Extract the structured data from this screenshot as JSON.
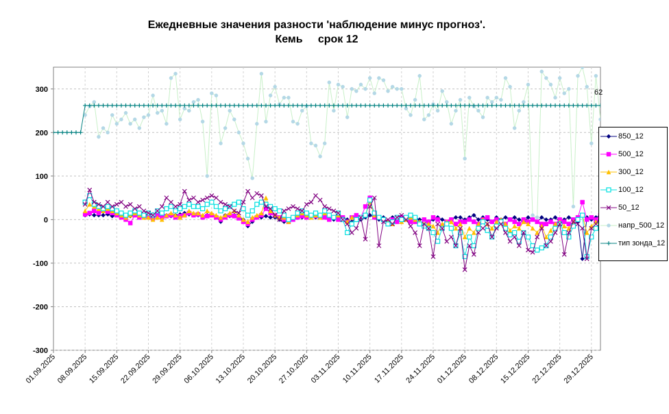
{
  "chart_data": {
    "type": "line",
    "title": "Ежедневные значения разности 'наблюдение минус прогноз'.",
    "subtitle": "Кемь     срок 12",
    "annotation": "62",
    "ylim": [
      -300,
      350
    ],
    "yticks": [
      -300,
      -200,
      -100,
      0,
      100,
      200,
      300
    ],
    "grid": true,
    "categories": [
      "01.09.2025",
      null,
      null,
      null,
      null,
      null,
      null,
      "08.09.2025",
      null,
      null,
      null,
      null,
      null,
      null,
      "15.09.2025",
      null,
      null,
      null,
      null,
      null,
      null,
      "22.09.2025",
      null,
      null,
      null,
      null,
      null,
      null,
      "29.09.2025",
      null,
      null,
      null,
      null,
      null,
      null,
      "06.10.2025",
      null,
      null,
      null,
      null,
      null,
      null,
      "13.10.2025",
      null,
      null,
      null,
      null,
      null,
      null,
      "20.10.2025",
      null,
      null,
      null,
      null,
      null,
      null,
      "27.10.2025",
      null,
      null,
      null,
      null,
      null,
      null,
      "03.11.2025",
      null,
      null,
      null,
      null,
      null,
      null,
      "10.11.2025",
      null,
      null,
      null,
      null,
      null,
      null,
      "17.11.2025",
      null,
      null,
      null,
      null,
      null,
      null,
      "24.11.2025",
      null,
      null,
      null,
      null,
      null,
      null,
      "01.12.2025",
      null,
      null,
      null,
      null,
      null,
      null,
      "08.12.2025",
      null,
      null,
      null,
      null,
      null,
      null,
      "15.12.2025",
      null,
      null,
      null,
      null,
      null,
      null,
      "22.12.2025",
      null,
      null,
      null,
      null,
      null,
      null,
      "29.12.2025",
      null,
      null
    ],
    "series": [
      {
        "name": "850_12",
        "color": "#000080",
        "marker": "diamond",
        "values": [
          null,
          null,
          null,
          null,
          null,
          null,
          null,
          10,
          12,
          10,
          10,
          10,
          12,
          8,
          10,
          8,
          5,
          8,
          10,
          8,
          5,
          8,
          12,
          10,
          10,
          10,
          8,
          10,
          12,
          15,
          12,
          10,
          10,
          8,
          10,
          12,
          5,
          -5,
          10,
          8,
          10,
          5,
          0,
          -15,
          -5,
          5,
          5,
          8,
          5,
          5,
          0,
          -5,
          0,
          5,
          8,
          5,
          10,
          8,
          5,
          5,
          5,
          5,
          0,
          5,
          5,
          0,
          -5,
          5,
          0,
          5,
          10,
          5,
          0,
          5,
          -5,
          5,
          0,
          5,
          5,
          10,
          5,
          0,
          0,
          -5,
          0,
          5,
          0,
          -5,
          0,
          5,
          5,
          0,
          5,
          10,
          0,
          5,
          0,
          -5,
          5,
          0,
          5,
          0,
          5,
          0,
          -5,
          5,
          0,
          -5,
          5,
          0,
          0,
          5,
          -5,
          0,
          5,
          0,
          -5,
          -90,
          5,
          0,
          5,
          10
        ]
      },
      {
        "name": "500_12",
        "color": "#ff00ff",
        "marker": "square",
        "values": [
          null,
          null,
          null,
          null,
          null,
          null,
          null,
          12,
          15,
          20,
          15,
          20,
          18,
          15,
          10,
          5,
          0,
          -8,
          10,
          5,
          8,
          5,
          3,
          10,
          5,
          8,
          10,
          5,
          8,
          10,
          15,
          10,
          12,
          5,
          8,
          10,
          5,
          0,
          5,
          10,
          8,
          3,
          -5,
          -10,
          0,
          5,
          10,
          25,
          15,
          10,
          5,
          0,
          -5,
          0,
          5,
          8,
          5,
          10,
          8,
          5,
          5,
          0,
          5,
          0,
          5,
          -5,
          5,
          10,
          5,
          30,
          50,
          5,
          5,
          0,
          -5,
          0,
          -5,
          5,
          0,
          -5,
          -5,
          -10,
          0,
          -5,
          5,
          0,
          -15,
          -5,
          0,
          -10,
          -5,
          -5,
          0,
          -5,
          -10,
          0,
          5,
          -5,
          0,
          -5,
          -10,
          0,
          -5,
          -10,
          0,
          -5,
          0,
          -5,
          -10,
          -10,
          -5,
          -10,
          0,
          -5,
          -10,
          0,
          5,
          40,
          0,
          5,
          0,
          10
        ]
      },
      {
        "name": "300_12",
        "color": "#ffc000",
        "marker": "triangle",
        "values": [
          null,
          null,
          null,
          null,
          null,
          null,
          null,
          20,
          35,
          30,
          25,
          20,
          25,
          20,
          15,
          10,
          5,
          10,
          15,
          10,
          5,
          5,
          0,
          5,
          0,
          10,
          15,
          10,
          5,
          10,
          20,
          15,
          15,
          10,
          20,
          15,
          10,
          5,
          10,
          15,
          20,
          10,
          0,
          -5,
          5,
          10,
          15,
          50,
          20,
          10,
          5,
          5,
          -5,
          5,
          10,
          15,
          10,
          5,
          10,
          5,
          15,
          10,
          5,
          10,
          0,
          -5,
          5,
          0,
          5,
          10,
          40,
          10,
          5,
          0,
          -5,
          -10,
          5,
          -5,
          0,
          5,
          0,
          -5,
          -10,
          -10,
          -15,
          -30,
          -10,
          -5,
          -5,
          -20,
          -10,
          -40,
          -20,
          -30,
          -10,
          0,
          -10,
          -20,
          -5,
          0,
          -10,
          -25,
          -15,
          -20,
          -5,
          -10,
          -20,
          -30,
          -15,
          -40,
          -25,
          -10,
          -5,
          -15,
          -20,
          -5,
          0,
          10,
          -30,
          -15,
          -5,
          -10
        ]
      },
      {
        "name": "100_12",
        "color": "#00e0e0",
        "marker": "open-square",
        "values": [
          null,
          null,
          null,
          null,
          null,
          null,
          null,
          40,
          55,
          35,
          30,
          25,
          30,
          25,
          20,
          15,
          10,
          15,
          20,
          15,
          10,
          15,
          10,
          20,
          15,
          25,
          30,
          20,
          25,
          30,
          35,
          30,
          30,
          25,
          35,
          40,
          30,
          20,
          25,
          30,
          35,
          40,
          25,
          10,
          20,
          35,
          40,
          35,
          30,
          25,
          20,
          10,
          0,
          5,
          15,
          20,
          15,
          10,
          15,
          10,
          20,
          10,
          5,
          15,
          0,
          -30,
          -10,
          0,
          5,
          10,
          45,
          15,
          5,
          0,
          -10,
          -5,
          5,
          0,
          5,
          10,
          5,
          -10,
          -15,
          -20,
          -30,
          -50,
          -20,
          -10,
          -20,
          -60,
          -30,
          -85,
          -40,
          -60,
          -20,
          -5,
          -25,
          -40,
          -15,
          -5,
          -20,
          -35,
          -30,
          -50,
          -30,
          -40,
          -60,
          -70,
          -65,
          -60,
          -40,
          -20,
          -10,
          -30,
          -40,
          -15,
          0,
          10,
          -85,
          -40,
          -20,
          -5
        ]
      },
      {
        "name": "50_12",
        "color": "#800080",
        "marker": "x",
        "values": [
          null,
          null,
          null,
          null,
          null,
          null,
          null,
          35,
          68,
          40,
          35,
          30,
          40,
          30,
          35,
          40,
          30,
          35,
          25,
          30,
          20,
          15,
          10,
          20,
          30,
          50,
          40,
          30,
          35,
          65,
          45,
          50,
          40,
          45,
          50,
          55,
          50,
          40,
          35,
          30,
          20,
          15,
          40,
          65,
          50,
          60,
          55,
          30,
          25,
          10,
          0,
          20,
          25,
          30,
          25,
          20,
          35,
          40,
          55,
          45,
          30,
          25,
          20,
          15,
          0,
          -10,
          -30,
          -20,
          5,
          -45,
          30,
          50,
          -60,
          -5,
          0,
          -10,
          5,
          10,
          0,
          -15,
          -30,
          -60,
          -10,
          -20,
          -85,
          -10,
          -20,
          -50,
          -40,
          -60,
          -20,
          -115,
          -60,
          -80,
          -30,
          -20,
          -10,
          -40,
          -20,
          -10,
          -30,
          -50,
          -40,
          -60,
          -30,
          -70,
          -75,
          -40,
          -20,
          -60,
          -50,
          -30,
          -10,
          -80,
          -30,
          -5,
          -10,
          -20,
          -90,
          -20,
          -10,
          5
        ]
      },
      {
        "name": "напр_500_12",
        "color": "#b4d8e6",
        "line_color": "#c8f0c8",
        "marker": "circle",
        "values": [
          null,
          null,
          null,
          null,
          null,
          null,
          null,
          240,
          260,
          270,
          190,
          210,
          200,
          240,
          220,
          230,
          245,
          220,
          230,
          210,
          235,
          240,
          285,
          245,
          250,
          220,
          325,
          335,
          230,
          255,
          250,
          270,
          275,
          225,
          100,
          290,
          285,
          175,
          210,
          250,
          230,
          200,
          175,
          140,
          95,
          220,
          335,
          225,
          285,
          305,
          265,
          280,
          280,
          225,
          220,
          250,
          260,
          175,
          170,
          145,
          175,
          315,
          250,
          310,
          305,
          235,
          300,
          295,
          310,
          300,
          325,
          290,
          325,
          320,
          295,
          305,
          300,
          300,
          255,
          240,
          275,
          330,
          230,
          240,
          265,
          250,
          295,
          270,
          220,
          250,
          275,
          140,
          280,
          260,
          250,
          235,
          280,
          270,
          280,
          275,
          325,
          305,
          210,
          250,
          270,
          310,
          10,
          5,
          340,
          325,
          310,
          280,
          325,
          290,
          300,
          30,
          330,
          350,
          305,
          175,
          330,
          230
        ]
      },
      {
        "name": "тип зонда_12",
        "color": "#008080",
        "marker": "plus",
        "values": [
          200,
          200,
          200,
          200,
          200,
          200,
          200,
          262,
          262,
          262,
          262,
          262,
          262,
          262,
          262,
          262,
          262,
          262,
          262,
          262,
          262,
          262,
          262,
          262,
          262,
          262,
          262,
          262,
          262,
          262,
          262,
          262,
          262,
          262,
          262,
          262,
          262,
          262,
          262,
          262,
          262,
          262,
          262,
          262,
          262,
          262,
          262,
          262,
          262,
          262,
          262,
          262,
          262,
          262,
          262,
          262,
          262,
          262,
          262,
          262,
          262,
          262,
          262,
          262,
          262,
          262,
          262,
          262,
          262,
          262,
          262,
          262,
          262,
          262,
          262,
          262,
          262,
          262,
          262,
          262,
          262,
          262,
          262,
          262,
          262,
          262,
          262,
          262,
          262,
          262,
          262,
          262,
          262,
          262,
          262,
          262,
          262,
          262,
          262,
          262,
          262,
          262,
          262,
          262,
          262,
          262,
          262,
          262,
          262,
          262,
          262,
          262,
          262,
          262,
          262,
          262,
          262,
          262,
          262,
          262,
          262,
          262
        ]
      }
    ]
  }
}
